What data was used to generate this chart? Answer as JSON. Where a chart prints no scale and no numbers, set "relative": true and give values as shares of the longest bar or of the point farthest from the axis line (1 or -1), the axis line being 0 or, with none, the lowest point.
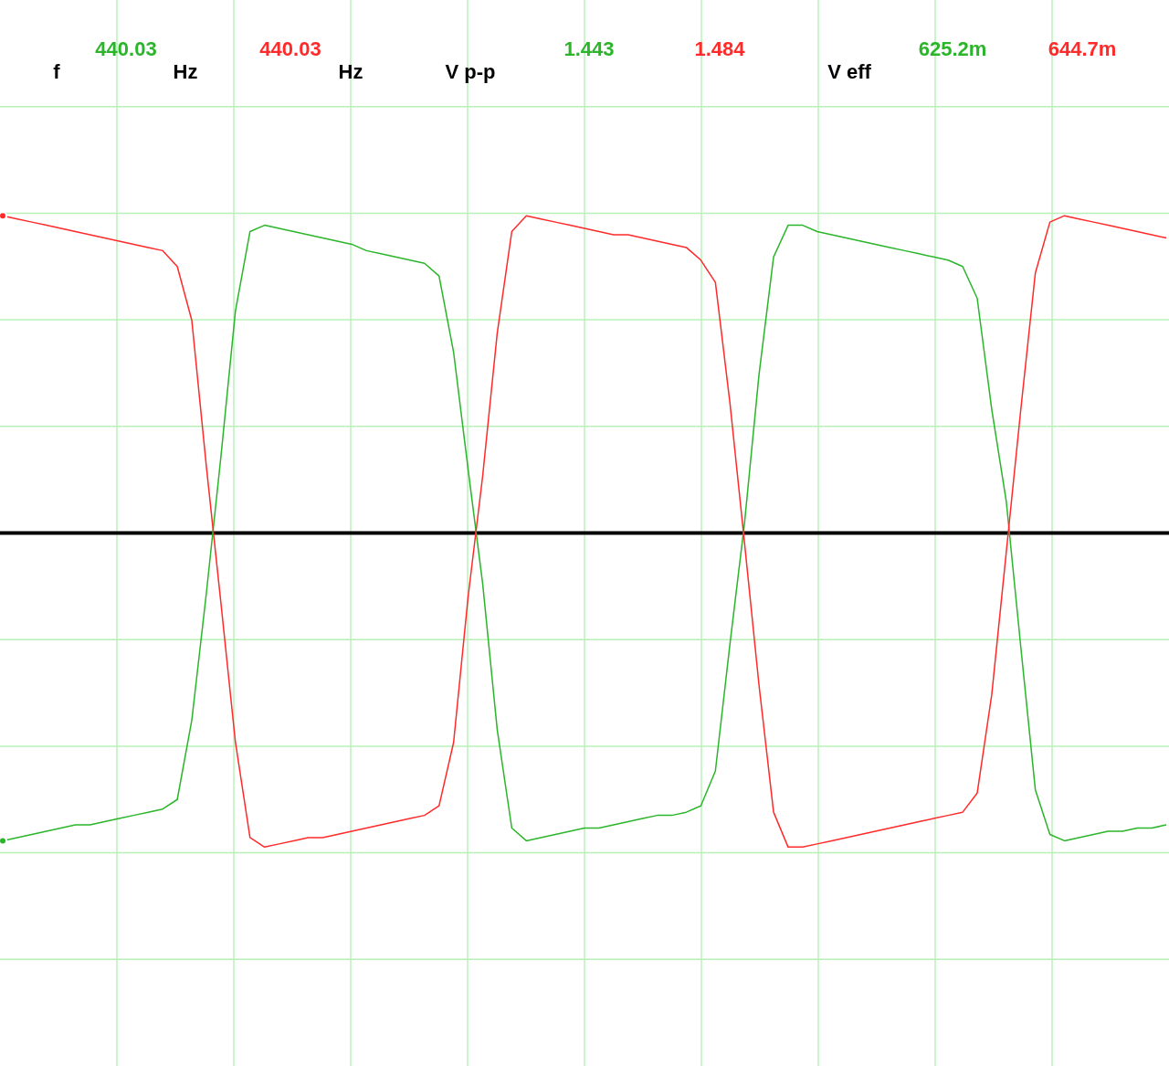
{
  "chart_data": {
    "type": "line",
    "relative": true,
    "grid": true,
    "categories": [
      null,
      null,
      null,
      null,
      null,
      null,
      null,
      null,
      null,
      null,
      null,
      null,
      null,
      null,
      null,
      null,
      null,
      null,
      null,
      null,
      null,
      null,
      null,
      null,
      null,
      null,
      null,
      null,
      null,
      null,
      null,
      null,
      null,
      null,
      null,
      null,
      null,
      null,
      null,
      null,
      null,
      null,
      null,
      null,
      null,
      null,
      null,
      null,
      null,
      null,
      null,
      null,
      null,
      null,
      null,
      null,
      null,
      null,
      null,
      null,
      null,
      null,
      null,
      null,
      null,
      null,
      null,
      null,
      null,
      null,
      null,
      null,
      null,
      null,
      null,
      null,
      null,
      null,
      null,
      null,
      null
    ],
    "series": [
      {
        "color": "#2ab52a",
        "values": [
          -0.97,
          -0.96,
          -0.95,
          -0.94,
          -0.93,
          -0.92,
          -0.92,
          -0.91,
          -0.9,
          -0.89,
          -0.88,
          -0.87,
          -0.84,
          -0.59,
          -0.19,
          0.24,
          0.7,
          0.95,
          0.97,
          0.96,
          0.95,
          0.94,
          0.93,
          0.92,
          0.91,
          0.89,
          0.88,
          0.87,
          0.86,
          0.85,
          0.81,
          0.57,
          0.2,
          -0.16,
          -0.62,
          -0.93,
          -0.97,
          -0.96,
          -0.95,
          -0.94,
          -0.93,
          -0.93,
          -0.92,
          -0.91,
          -0.9,
          -0.89,
          -0.89,
          -0.88,
          -0.86,
          -0.75,
          -0.35,
          0.03,
          0.5,
          0.87,
          0.97,
          0.97,
          0.95,
          0.94,
          0.93,
          0.92,
          0.91,
          0.9,
          0.89,
          0.88,
          0.87,
          0.86,
          0.84,
          0.74,
          0.39,
          0.1,
          -0.36,
          -0.81,
          -0.95,
          -0.97,
          -0.96,
          -0.95,
          -0.94,
          -0.94,
          -0.93,
          -0.93,
          -0.92
        ]
      },
      {
        "color": "#ff2a2a",
        "values": [
          1.0,
          0.99,
          0.98,
          0.97,
          0.96,
          0.95,
          0.94,
          0.93,
          0.92,
          0.91,
          0.9,
          0.89,
          0.84,
          0.67,
          0.21,
          -0.22,
          -0.66,
          -0.96,
          -0.99,
          -0.98,
          -0.97,
          -0.96,
          -0.96,
          -0.95,
          -0.94,
          -0.93,
          -0.92,
          -0.91,
          -0.9,
          -0.89,
          -0.86,
          -0.66,
          -0.2,
          0.18,
          0.63,
          0.95,
          1.0,
          0.99,
          0.98,
          0.97,
          0.96,
          0.95,
          0.94,
          0.94,
          0.93,
          0.92,
          0.91,
          0.9,
          0.86,
          0.79,
          0.41,
          -0.03,
          -0.48,
          -0.88,
          -0.99,
          -0.99,
          -0.98,
          -0.97,
          -0.96,
          -0.95,
          -0.94,
          -0.93,
          -0.92,
          -0.91,
          -0.9,
          -0.89,
          -0.88,
          -0.82,
          -0.51,
          -0.06,
          0.39,
          0.82,
          0.98,
          1.0,
          0.99,
          0.98,
          0.97,
          0.96,
          0.95,
          0.94,
          0.93
        ]
      }
    ],
    "annotations": [
      "f",
      "440.03",
      "Hz",
      "440.03",
      "Hz",
      "V p-p",
      "1.443",
      "1.484",
      "V eff",
      "625.2m",
      "644.7m"
    ]
  }
}
